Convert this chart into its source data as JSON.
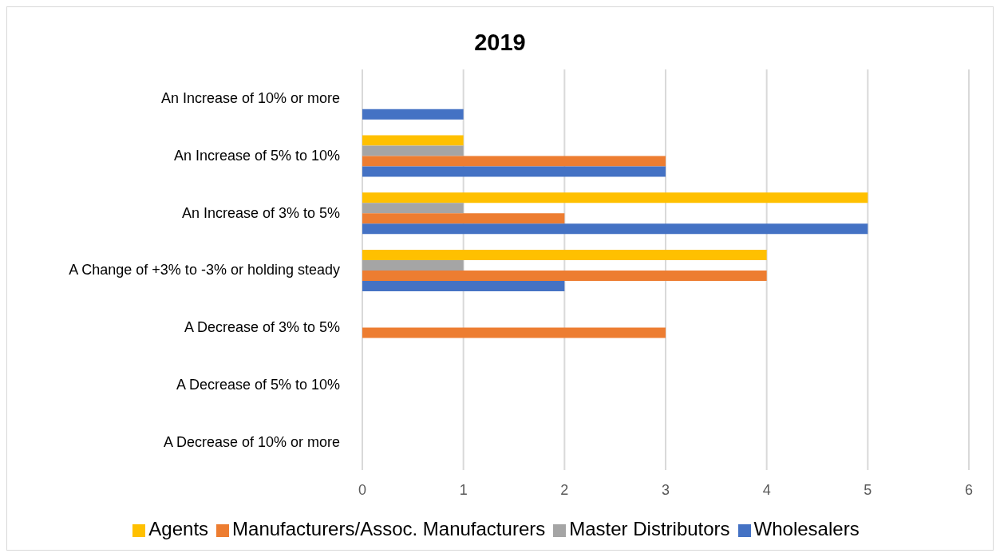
{
  "chart_data": {
    "type": "bar",
    "orientation": "horizontal",
    "title": "2019",
    "categories": [
      "An Increase of 10% or more",
      "An Increase of 5% to 10%",
      "An Increase of 3% to 5%",
      "A Change of +3% to -3% or holding steady",
      "A Decrease of 3% to 5%",
      "A Decrease of 5% to 10%",
      "A Decrease of 10% or more"
    ],
    "series": [
      {
        "name": "Agents",
        "color": "#ffc000",
        "values": [
          0,
          1,
          5,
          4,
          0,
          0,
          0
        ]
      },
      {
        "name": "Master Distributors",
        "color": "#a5a5a5",
        "values": [
          0,
          1,
          1,
          1,
          0,
          0,
          0
        ]
      },
      {
        "name": "Manufacturers/Assoc. Manufacturers",
        "color": "#ed7d31",
        "values": [
          0,
          3,
          2,
          4,
          3,
          0,
          0
        ]
      },
      {
        "name": "Wholesalers",
        "color": "#4472c4",
        "values": [
          1,
          3,
          5,
          2,
          0,
          0,
          0
        ]
      }
    ],
    "xlim": [
      0,
      6
    ],
    "xticks": [
      0,
      1,
      2,
      3,
      4,
      5,
      6
    ],
    "grid": "x",
    "legend": "bottom"
  }
}
